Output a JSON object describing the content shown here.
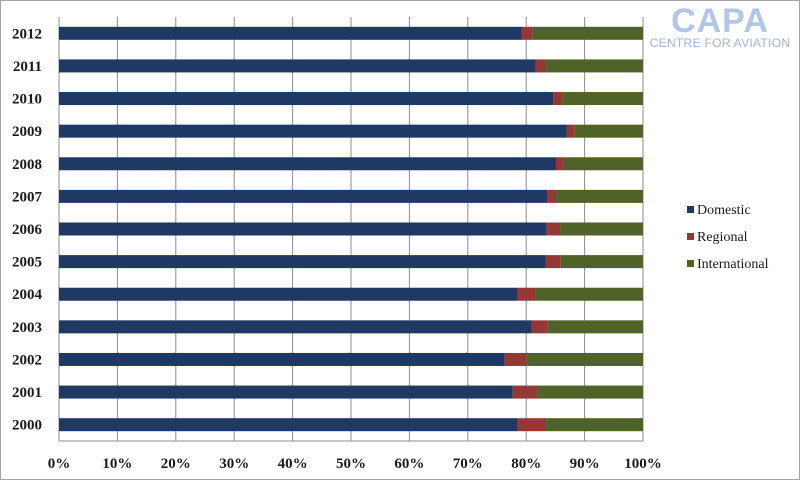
{
  "logo": {
    "name": "CAPA",
    "tagline": "CENTRE FOR AVIATION"
  },
  "chart_data": {
    "type": "bar",
    "orientation": "horizontal",
    "stacked": "percent",
    "categories": [
      "2012",
      "2011",
      "2010",
      "2009",
      "2008",
      "2007",
      "2006",
      "2005",
      "2004",
      "2003",
      "2002",
      "2001",
      "2000"
    ],
    "series": [
      {
        "name": "Domestic",
        "color": "#1f3864",
        "values": [
          79.2,
          81.6,
          84.6,
          86.9,
          85.1,
          83.7,
          83.5,
          83.3,
          78.5,
          80.9,
          76.3,
          77.7,
          78.5
        ]
      },
      {
        "name": "Regional",
        "color": "#953735",
        "values": [
          1.9,
          1.7,
          1.6,
          1.4,
          1.3,
          1.4,
          2.3,
          2.6,
          3.1,
          2.8,
          3.8,
          4.3,
          4.9
        ]
      },
      {
        "name": "International",
        "color": "#4f6228",
        "values": [
          18.9,
          16.7,
          13.8,
          11.7,
          13.6,
          14.9,
          14.2,
          14.1,
          18.4,
          16.3,
          19.9,
          18.0,
          16.6
        ]
      }
    ],
    "x_ticks": [
      "0%",
      "10%",
      "20%",
      "30%",
      "40%",
      "50%",
      "60%",
      "70%",
      "80%",
      "90%",
      "100%"
    ],
    "xlim": [
      0,
      100
    ],
    "grid": true,
    "legend_position": "right"
  }
}
